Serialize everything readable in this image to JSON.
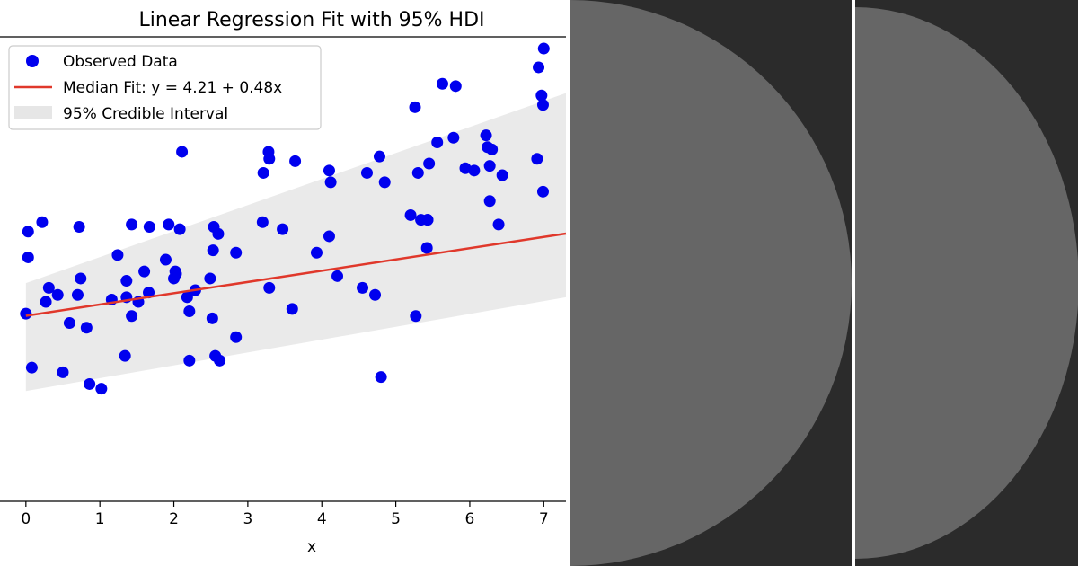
{
  "chart_data": {
    "type": "scatter",
    "title": "Linear Regression Fit with 95% HDI",
    "xlabel": "x",
    "ylabel": "",
    "xlim": [
      -0.35,
      7.3
    ],
    "ylim": [
      -3.7,
      16.1
    ],
    "grid": false,
    "legend_position": "top-left",
    "x_ticks": [
      "0",
      "1",
      "2",
      "3",
      "4",
      "5",
      "6",
      "7"
    ],
    "colors": {
      "points": "#0000ee",
      "fit_line": "#e0382b",
      "interval": "#e6e6e6"
    },
    "legend": {
      "observed": "Observed Data",
      "fit": "Median Fit: y = 4.21 + 0.48x",
      "interval": "95% Credible Interval"
    },
    "fit": {
      "intercept": 4.21,
      "slope": 0.48
    },
    "interval": {
      "x": [
        0,
        7.3
      ],
      "lower": [
        1.0,
        5.0
      ],
      "upper": [
        5.6,
        13.7
      ]
    },
    "series": [
      {
        "name": "Observed Data",
        "x": [
          0.0,
          0.03,
          0.03,
          0.08,
          0.22,
          0.27,
          0.31,
          0.43,
          0.5,
          0.59,
          0.7,
          0.72,
          0.74,
          0.82,
          0.86,
          1.02,
          1.16,
          1.24,
          1.34,
          1.36,
          1.36,
          1.43,
          1.43,
          1.52,
          1.6,
          1.66,
          1.67,
          1.89,
          1.93,
          2.0,
          2.02,
          2.03,
          2.08,
          2.11,
          2.18,
          2.21,
          2.21,
          2.29,
          2.49,
          2.52,
          2.53,
          2.54,
          2.56,
          2.6,
          2.62,
          2.84,
          2.84,
          3.2,
          3.21,
          3.29,
          3.28,
          3.29,
          3.47,
          3.6,
          3.64,
          3.93,
          4.1,
          4.1,
          4.12,
          4.21,
          4.55,
          4.61,
          4.72,
          4.78,
          4.8,
          4.85,
          5.2,
          5.26,
          5.27,
          5.3,
          5.34,
          5.42,
          5.43,
          5.43,
          5.45,
          5.56,
          5.63,
          5.78,
          5.81,
          5.94,
          6.06,
          6.22,
          6.24,
          6.27,
          6.27,
          6.3,
          6.39,
          6.44,
          6.91,
          6.93,
          6.97,
          6.99,
          6.99,
          7.0
        ],
        "y": [
          4.3,
          7.8,
          6.7,
          2.0,
          8.2,
          4.8,
          5.4,
          5.1,
          1.8,
          3.9,
          5.1,
          8.0,
          5.8,
          3.7,
          1.3,
          1.1,
          4.9,
          6.8,
          2.5,
          5.7,
          5.0,
          4.2,
          8.1,
          4.8,
          6.1,
          5.2,
          8.0,
          6.6,
          8.1,
          5.8,
          6.1,
          6.0,
          7.9,
          11.2,
          5.0,
          4.4,
          2.3,
          5.3,
          5.8,
          4.1,
          7.0,
          8.0,
          2.5,
          7.7,
          2.3,
          6.9,
          3.3,
          8.2,
          10.3,
          10.9,
          11.2,
          5.4,
          7.9,
          4.5,
          10.8,
          6.9,
          7.6,
          10.4,
          9.9,
          5.9,
          5.4,
          10.3,
          5.1,
          11.0,
          1.6,
          9.9,
          8.5,
          13.1,
          4.2,
          10.3,
          8.3,
          7.1,
          8.3,
          8.3,
          10.7,
          11.6,
          14.1,
          11.8,
          14.0,
          10.5,
          10.4,
          11.9,
          11.4,
          9.1,
          10.6,
          11.3,
          8.1,
          10.2,
          10.9,
          14.8,
          13.6,
          13.2,
          9.5,
          15.6
        ]
      }
    ]
  }
}
